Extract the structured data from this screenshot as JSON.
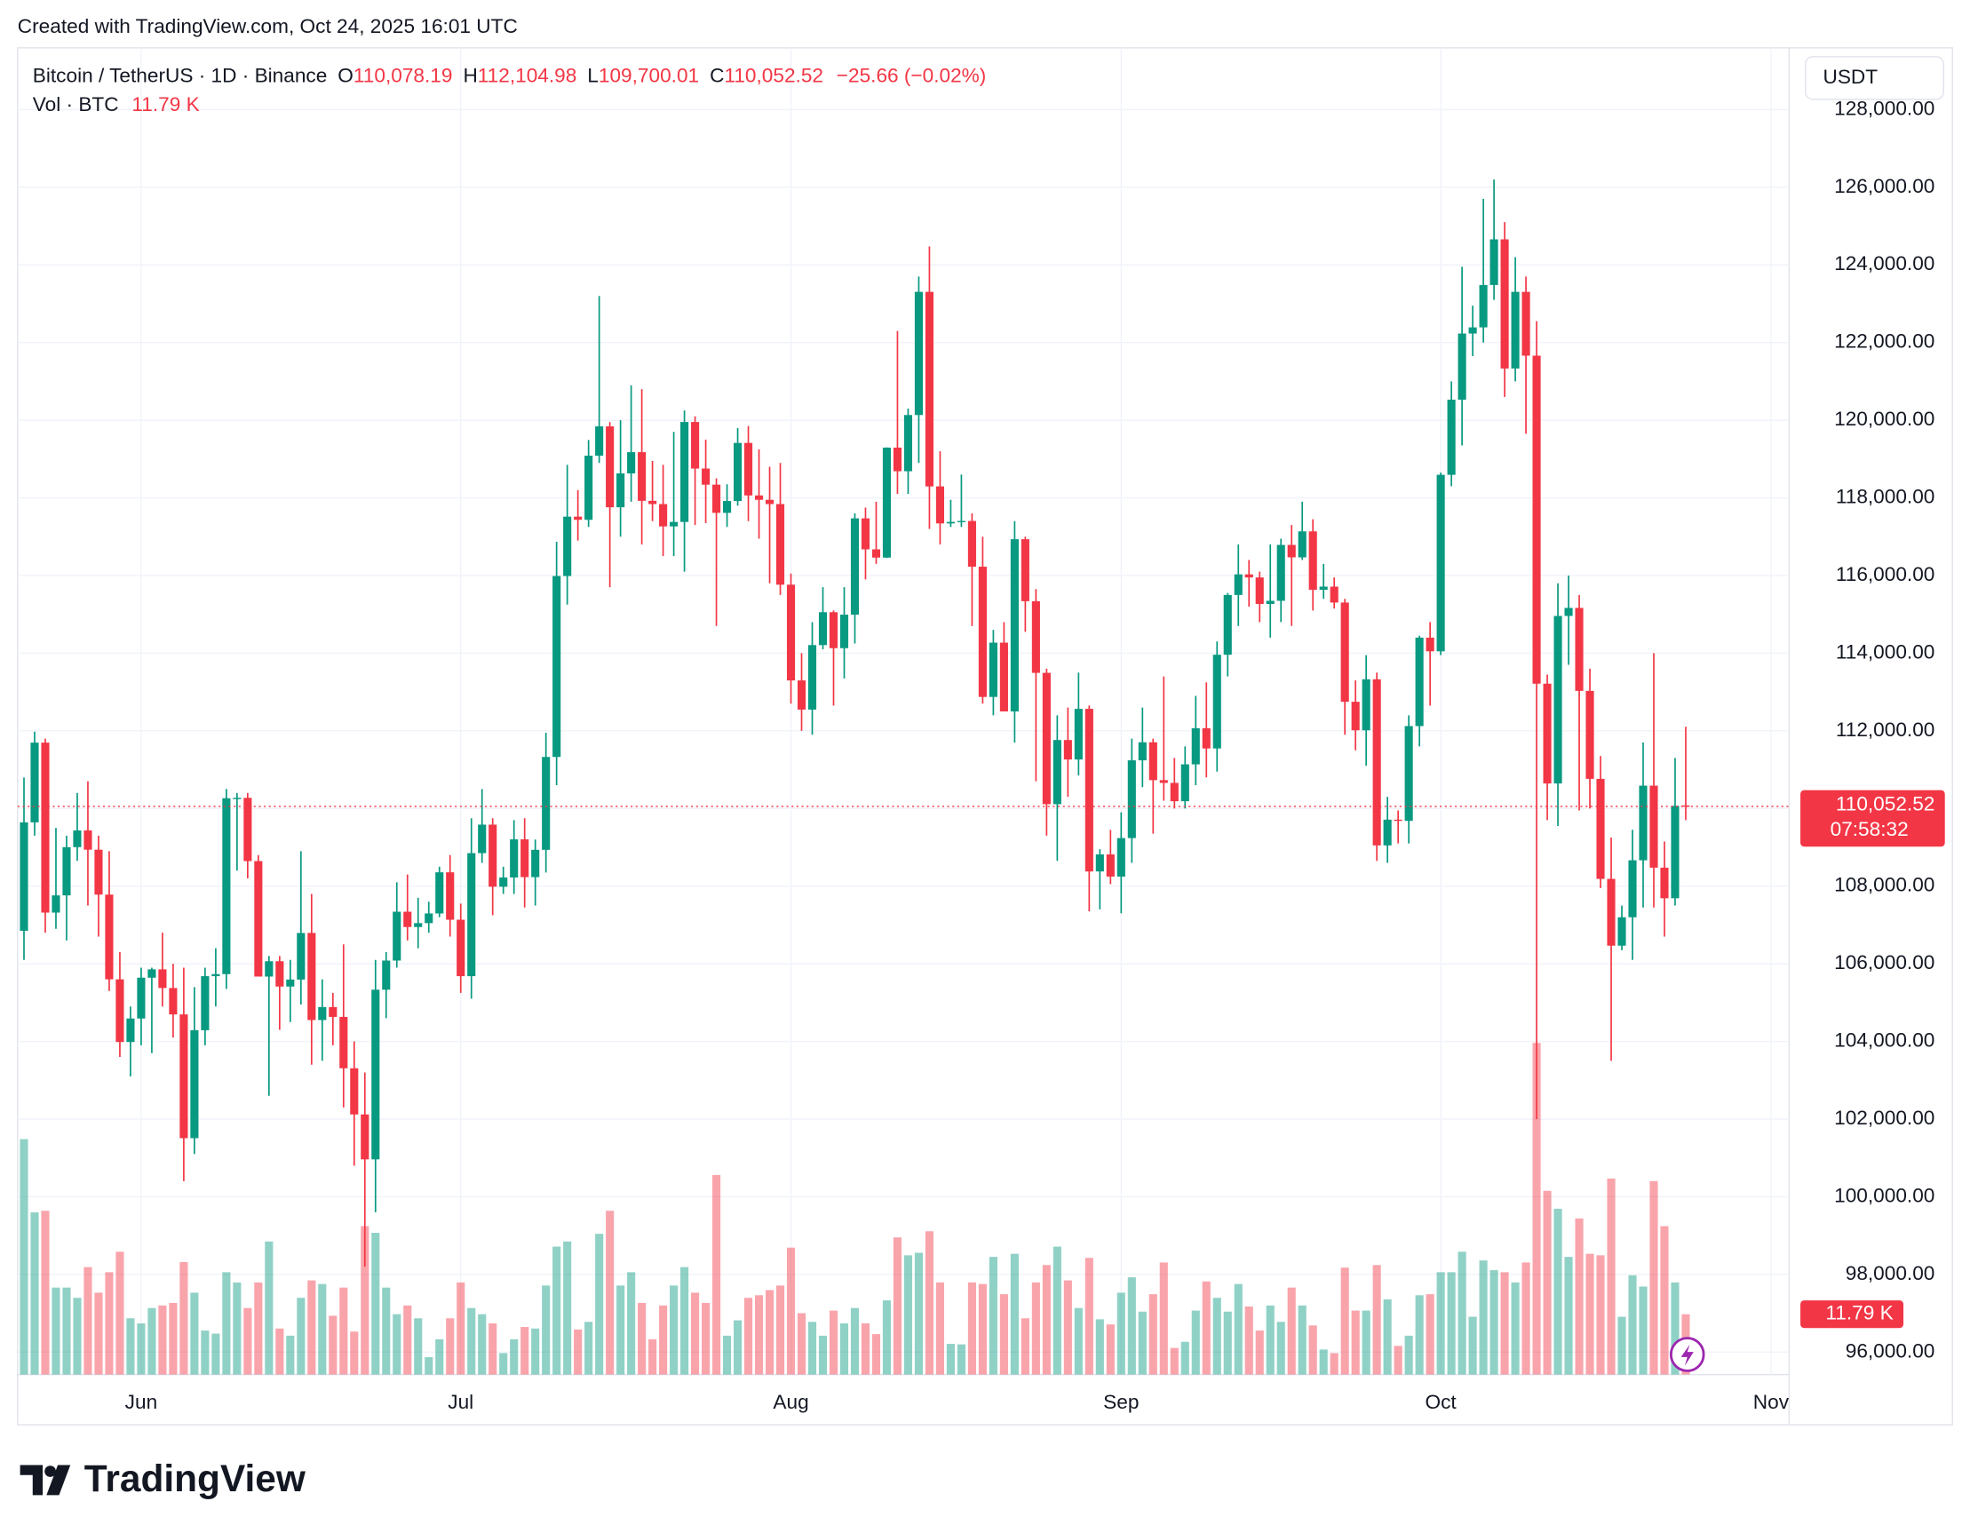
{
  "caption": "Created with TradingView.com, Oct 24, 2025 16:01 UTC",
  "brand": "TradingView",
  "chart_data": {
    "type": "candlestick",
    "symbol": "Bitcoin / TetherUS · 1D · Binance",
    "ohlc_letters": [
      "O",
      "H",
      "L",
      "C"
    ],
    "last_labels": [
      "110,078.19",
      "112,104.98",
      "109,700.01",
      "110,052.52"
    ],
    "change_label": "−25.66 (−0.02%)",
    "volume_title": "Vol · BTC",
    "last_volume_label": "11.79 K",
    "currency": "USDT",
    "countdown": "07:58:32",
    "up_color": "#089981",
    "down_color": "#f23645",
    "grid": true,
    "xlim": [
      -0.6,
      165.7
    ],
    "xticks": [
      {
        "value": 11,
        "label": "Jun"
      },
      {
        "value": 41,
        "label": "Jul"
      },
      {
        "value": 72,
        "label": "Aug"
      },
      {
        "value": 103,
        "label": "Sep"
      },
      {
        "value": 133,
        "label": "Oct"
      },
      {
        "value": 164,
        "label": "Nov"
      }
    ],
    "ylim": [
      95420,
      129590
    ],
    "yticks": [
      {
        "value": 96000,
        "label": "96,000.00"
      },
      {
        "value": 98000,
        "label": "98,000.00"
      },
      {
        "value": 100000,
        "label": "100,000.00"
      },
      {
        "value": 102000,
        "label": "102,000.00"
      },
      {
        "value": 104000,
        "label": "104,000.00"
      },
      {
        "value": 106000,
        "label": "106,000.00"
      },
      {
        "value": 108000,
        "label": "108,000.00"
      },
      {
        "value": 110000,
        "label": "110,000.00"
      },
      {
        "value": 112000,
        "label": "112,000.00"
      },
      {
        "value": 114000,
        "label": "114,000.00"
      },
      {
        "value": 116000,
        "label": "116,000.00"
      },
      {
        "value": 118000,
        "label": "118,000.00"
      },
      {
        "value": 120000,
        "label": "120,000.00"
      },
      {
        "value": 122000,
        "label": "122,000.00"
      },
      {
        "value": 124000,
        "label": "124,000.00"
      },
      {
        "value": 126000,
        "label": "126,000.00"
      },
      {
        "value": 128000,
        "label": "128,000.00"
      }
    ],
    "candles": [
      [
        106850,
        110797,
        106100,
        109643
      ],
      [
        109643,
        111980,
        109300,
        111696
      ],
      [
        111696,
        111800,
        106800,
        107318
      ],
      [
        107318,
        109500,
        106900,
        107762
      ],
      [
        107762,
        109300,
        106600,
        109004
      ],
      [
        109004,
        110400,
        108650,
        109435
      ],
      [
        109435,
        110700,
        107500,
        108938
      ],
      [
        108938,
        109300,
        106700,
        107782
      ],
      [
        107782,
        108900,
        105300,
        105600
      ],
      [
        105600,
        106300,
        103600,
        103985
      ],
      [
        103985,
        104900,
        103100,
        104591
      ],
      [
        104591,
        105900,
        103900,
        105642
      ],
      [
        105642,
        105900,
        103700,
        105857
      ],
      [
        105857,
        106800,
        104900,
        105376
      ],
      [
        105376,
        106000,
        104100,
        104696
      ],
      [
        104696,
        105900,
        100400,
        101509
      ],
      [
        101509,
        105400,
        101100,
        104289
      ],
      [
        104289,
        105900,
        103900,
        105681
      ],
      [
        105681,
        106400,
        104900,
        105734
      ],
      [
        105734,
        110500,
        105350,
        110264
      ],
      [
        110264,
        110400,
        108400,
        110274
      ],
      [
        110274,
        110400,
        108200,
        108645
      ],
      [
        108645,
        108800,
        105700,
        105671
      ],
      [
        105671,
        106200,
        102600,
        106066
      ],
      [
        106066,
        106200,
        104300,
        105414
      ],
      [
        105414,
        106100,
        104500,
        105594
      ],
      [
        105594,
        108900,
        104950,
        106794
      ],
      [
        106794,
        107800,
        103400,
        104551
      ],
      [
        104551,
        105600,
        103500,
        104886
      ],
      [
        104886,
        105250,
        103900,
        104632
      ],
      [
        104632,
        106500,
        102300,
        103309
      ],
      [
        103309,
        104000,
        100800,
        102120
      ],
      [
        102120,
        103200,
        98200,
        100963
      ],
      [
        100963,
        106100,
        99600,
        105333
      ],
      [
        105333,
        106300,
        104600,
        106083
      ],
      [
        106083,
        108100,
        105900,
        107341
      ],
      [
        107341,
        108300,
        106600,
        106947
      ],
      [
        106947,
        107700,
        106400,
        107047
      ],
      [
        107047,
        107600,
        106800,
        107296
      ],
      [
        107296,
        108500,
        107200,
        108356
      ],
      [
        108356,
        108800,
        106700,
        107135
      ],
      [
        107135,
        107550,
        105250,
        105681
      ],
      [
        105681,
        109750,
        105100,
        108850
      ],
      [
        108850,
        110500,
        108600,
        109584
      ],
      [
        109584,
        109750,
        107250,
        107985
      ],
      [
        107985,
        108500,
        107800,
        108223
      ],
      [
        108223,
        109700,
        107800,
        109205
      ],
      [
        109205,
        109750,
        107450,
        108232
      ],
      [
        108232,
        109200,
        107500,
        108935
      ],
      [
        108935,
        111950,
        108350,
        111327
      ],
      [
        111327,
        116870,
        110600,
        115987
      ],
      [
        115987,
        118850,
        115250,
        117516
      ],
      [
        117516,
        118200,
        116900,
        117435
      ],
      [
        117435,
        119490,
        117250,
        119086
      ],
      [
        119086,
        123200,
        118900,
        119841
      ],
      [
        119841,
        119950,
        115700,
        117758
      ],
      [
        117758,
        120000,
        117000,
        118630
      ],
      [
        118630,
        120900,
        117900,
        119177
      ],
      [
        119177,
        120800,
        116800,
        117924
      ],
      [
        117924,
        118950,
        117400,
        117840
      ],
      [
        117840,
        118850,
        116500,
        117265
      ],
      [
        117265,
        119700,
        116500,
        117380
      ],
      [
        117380,
        120250,
        116100,
        119954
      ],
      [
        119954,
        120100,
        117300,
        118755
      ],
      [
        118755,
        119500,
        117350,
        118340
      ],
      [
        118340,
        118500,
        114700,
        117614
      ],
      [
        117614,
        118350,
        117250,
        117919
      ],
      [
        117919,
        119800,
        117800,
        119415
      ],
      [
        119415,
        119850,
        117400,
        118062
      ],
      [
        118062,
        119250,
        116950,
        117950
      ],
      [
        117950,
        118800,
        115800,
        117840
      ],
      [
        117840,
        118900,
        115500,
        115764
      ],
      [
        115764,
        116050,
        112700,
        113298
      ],
      [
        113298,
        114000,
        112000,
        112547
      ],
      [
        112547,
        114800,
        111900,
        114208
      ],
      [
        114208,
        115700,
        114100,
        115055
      ],
      [
        115055,
        115100,
        112650,
        114129
      ],
      [
        114129,
        115700,
        113350,
        114992
      ],
      [
        114992,
        117600,
        114250,
        117472
      ],
      [
        117472,
        117750,
        115900,
        116674
      ],
      [
        116674,
        117900,
        116300,
        116462
      ],
      [
        116462,
        119300,
        116450,
        119294
      ],
      [
        119294,
        122300,
        118100,
        118686
      ],
      [
        118686,
        120300,
        118100,
        120134
      ],
      [
        120134,
        123700,
        118900,
        123306
      ],
      [
        123306,
        124474,
        117200,
        118295
      ],
      [
        118295,
        119200,
        116800,
        117342
      ],
      [
        117342,
        117950,
        117250,
        117380
      ],
      [
        117380,
        118600,
        117250,
        117405
      ],
      [
        117405,
        117600,
        114700,
        116227
      ],
      [
        116227,
        117000,
        112700,
        112873
      ],
      [
        112873,
        114600,
        112400,
        114271
      ],
      [
        114271,
        114800,
        112600,
        112500
      ],
      [
        112500,
        117400,
        111700,
        116935
      ],
      [
        116935,
        117000,
        114550,
        115339
      ],
      [
        115339,
        115650,
        110700,
        113493
      ],
      [
        113493,
        113600,
        109300,
        110111
      ],
      [
        110111,
        112400,
        108650,
        111763
      ],
      [
        111763,
        112600,
        110300,
        111262
      ],
      [
        111262,
        113500,
        110850,
        112566
      ],
      [
        112566,
        112650,
        107350,
        108378
      ],
      [
        108378,
        108950,
        107400,
        108817
      ],
      [
        108817,
        109450,
        108050,
        108246
      ],
      [
        108246,
        109900,
        107300,
        109238
      ],
      [
        109238,
        111800,
        108600,
        111240
      ],
      [
        111240,
        112600,
        110550,
        111705
      ],
      [
        111705,
        111800,
        109350,
        110730
      ],
      [
        110730,
        113400,
        110200,
        110659
      ],
      [
        110659,
        111300,
        110000,
        110187
      ],
      [
        110187,
        111600,
        110000,
        111137
      ],
      [
        111137,
        112900,
        110600,
        112066
      ],
      [
        112066,
        113250,
        110800,
        111546
      ],
      [
        111546,
        114300,
        110950,
        113960
      ],
      [
        113960,
        115550,
        113400,
        115499
      ],
      [
        115499,
        116800,
        114700,
        116030
      ],
      [
        116030,
        116400,
        115200,
        115950
      ],
      [
        115950,
        116100,
        114800,
        115268
      ],
      [
        115268,
        116800,
        114400,
        115349
      ],
      [
        115349,
        116950,
        114800,
        116788
      ],
      [
        116788,
        117300,
        114700,
        116468
      ],
      [
        116468,
        117900,
        116400,
        117137
      ],
      [
        117137,
        117450,
        115100,
        115632
      ],
      [
        115632,
        116300,
        115400,
        115714
      ],
      [
        115714,
        115950,
        115150,
        115304
      ],
      [
        115304,
        115400,
        111900,
        112748
      ],
      [
        112748,
        113300,
        111500,
        112014
      ],
      [
        112014,
        113950,
        111100,
        113328
      ],
      [
        113328,
        113500,
        108650,
        109049
      ],
      [
        109049,
        110300,
        108600,
        109712
      ],
      [
        109712,
        109950,
        109100,
        109681
      ],
      [
        109681,
        112400,
        109100,
        112122
      ],
      [
        112122,
        114450,
        111600,
        114400
      ],
      [
        114400,
        114800,
        112650,
        114048
      ],
      [
        114048,
        118650,
        113950,
        118594
      ],
      [
        118594,
        121000,
        118300,
        120529
      ],
      [
        120529,
        123950,
        119350,
        122232
      ],
      [
        122232,
        122950,
        121650,
        122391
      ],
      [
        122391,
        125700,
        122000,
        123482
      ],
      [
        123482,
        126200,
        123100,
        124658
      ],
      [
        124658,
        125100,
        120600,
        121332
      ],
      [
        121332,
        124200,
        121000,
        123306
      ],
      [
        123306,
        123700,
        119650,
        121662
      ],
      [
        121662,
        122550,
        102000,
        113214
      ],
      [
        113214,
        113450,
        109700,
        110644
      ],
      [
        110644,
        115800,
        109550,
        114959
      ],
      [
        114959,
        116000,
        113700,
        115166
      ],
      [
        115166,
        115500,
        109950,
        113029
      ],
      [
        113029,
        113600,
        110000,
        110763
      ],
      [
        110763,
        111350,
        107950,
        108187
      ],
      [
        108187,
        109250,
        103500,
        106467
      ],
      [
        106467,
        107500,
        106350,
        107198
      ],
      [
        107198,
        109450,
        106100,
        108666
      ],
      [
        108666,
        111700,
        107450,
        110588
      ],
      [
        110588,
        114000,
        107450,
        108476
      ],
      [
        108476,
        109150,
        106700,
        107688
      ],
      [
        107688,
        111300,
        107500,
        110069
      ],
      [
        110078.19,
        112104.98,
        109700.01,
        110052.52
      ]
    ],
    "volume": [
      46,
      31.7,
      32,
      17,
      17,
      15,
      21,
      16,
      20,
      24,
      11,
      10,
      13,
      13.5,
      14,
      22,
      16,
      8.6,
      8,
      20,
      18,
      13,
      18,
      26,
      9,
      7.6,
      15,
      18.4,
      17.7,
      11.5,
      17,
      8.4,
      29,
      27.7,
      17,
      11.8,
      13.5,
      11,
      3.4,
      6.9,
      11,
      18,
      13,
      11.8,
      10,
      4.2,
      6.9,
      9.3,
      9,
      17.4,
      25,
      26,
      8.8,
      10.3,
      27.5,
      32,
      17.4,
      20,
      14,
      6.9,
      13.5,
      17.4,
      21,
      16,
      14,
      39,
      7.6,
      10.6,
      15,
      15.5,
      16.5,
      17.4,
      24.8,
      12,
      10.3,
      7.6,
      12.5,
      10,
      13,
      10,
      7.9,
      14.5,
      26.8,
      23.3,
      23.8,
      28,
      18,
      6,
      5.9,
      18,
      17.7,
      23,
      15.7,
      23.6,
      11,
      18,
      21.4,
      25,
      18.4,
      13,
      22.8,
      10.8,
      9.8,
      16,
      19,
      12.3,
      15.7,
      21.9,
      5.2,
      6.4,
      12.5,
      18.2,
      15,
      12.3,
      17.7,
      13.3,
      8.6,
      13.5,
      10.3,
      17,
      13.5,
      9.6,
      4.9,
      4.2,
      20.9,
      12.5,
      12.5,
      21.4,
      14.7,
      5.6,
      7.6,
      15.5,
      15.7,
      20,
      20,
      24,
      11.3,
      22.3,
      20.4,
      20,
      18,
      21.9,
      64.8,
      35.9,
      32.4,
      23,
      30.5,
      23.6,
      23.3,
      38.3,
      11.3,
      19.4,
      17.2,
      37.8,
      29,
      18,
      11.79
    ]
  }
}
